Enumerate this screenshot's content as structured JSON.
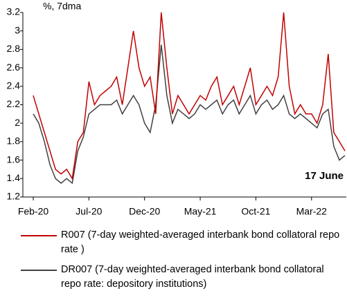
{
  "chart_data": {
    "type": "line",
    "ylabel": "%, 7dma",
    "annotation": "17 June",
    "annotation_color": "#c00000",
    "categories": [
      "Feb-20",
      null,
      null,
      null,
      null,
      null,
      null,
      null,
      null,
      null,
      "Jul-20",
      null,
      null,
      null,
      null,
      null,
      null,
      null,
      null,
      null,
      "Dec-20",
      null,
      null,
      null,
      null,
      null,
      null,
      null,
      null,
      null,
      "May-21",
      null,
      null,
      null,
      null,
      null,
      null,
      null,
      null,
      null,
      "Oct-21",
      null,
      null,
      null,
      null,
      null,
      null,
      null,
      null,
      null,
      "Mar-22",
      null,
      null,
      null,
      null,
      null,
      null
    ],
    "series": [
      {
        "name": "R007 (7-day weighted-averaged interbank bond collatoral repo rate )",
        "color": "#c00000",
        "values": [
          2.3,
          2.1,
          1.9,
          1.7,
          1.5,
          1.45,
          1.5,
          1.4,
          1.8,
          1.9,
          2.45,
          2.2,
          2.3,
          2.35,
          2.4,
          2.5,
          2.2,
          2.6,
          3.0,
          2.6,
          2.4,
          2.5,
          2.1,
          3.2,
          2.6,
          2.1,
          2.3,
          2.2,
          2.1,
          2.2,
          2.3,
          2.25,
          2.4,
          2.5,
          2.2,
          2.3,
          2.4,
          2.2,
          2.4,
          2.6,
          2.2,
          2.3,
          2.4,
          2.3,
          2.5,
          3.2,
          2.4,
          2.1,
          2.2,
          2.1,
          2.1,
          2.0,
          2.2,
          2.75,
          1.9,
          1.8,
          1.7
        ]
      },
      {
        "name": "DR007 (7-day weighted-averaged interbank bond collatoral repo rate: depository institutions)",
        "color": "#404040",
        "values": [
          2.1,
          2.0,
          1.8,
          1.55,
          1.4,
          1.35,
          1.4,
          1.35,
          1.7,
          1.85,
          2.1,
          2.15,
          2.2,
          2.2,
          2.2,
          2.25,
          2.1,
          2.2,
          2.3,
          2.2,
          2.0,
          1.9,
          2.2,
          2.85,
          2.3,
          2.0,
          2.15,
          2.1,
          2.05,
          2.1,
          2.2,
          2.15,
          2.2,
          2.25,
          2.1,
          2.2,
          2.25,
          2.1,
          2.2,
          2.3,
          2.1,
          2.2,
          2.25,
          2.15,
          2.2,
          2.3,
          2.1,
          2.05,
          2.1,
          2.05,
          2.0,
          1.95,
          2.1,
          2.15,
          1.75,
          1.6,
          1.65
        ]
      }
    ],
    "ylim": [
      1.2,
      3.2
    ],
    "yticks": [
      {
        "value": 1.2,
        "label": "1.2"
      },
      1.4,
      1.6,
      1.8,
      {
        "value": 2,
        "label": "2"
      },
      2.2,
      2.4,
      2.6,
      2.8,
      {
        "value": 3,
        "label": "3"
      },
      3.2
    ],
    "grid": false
  }
}
